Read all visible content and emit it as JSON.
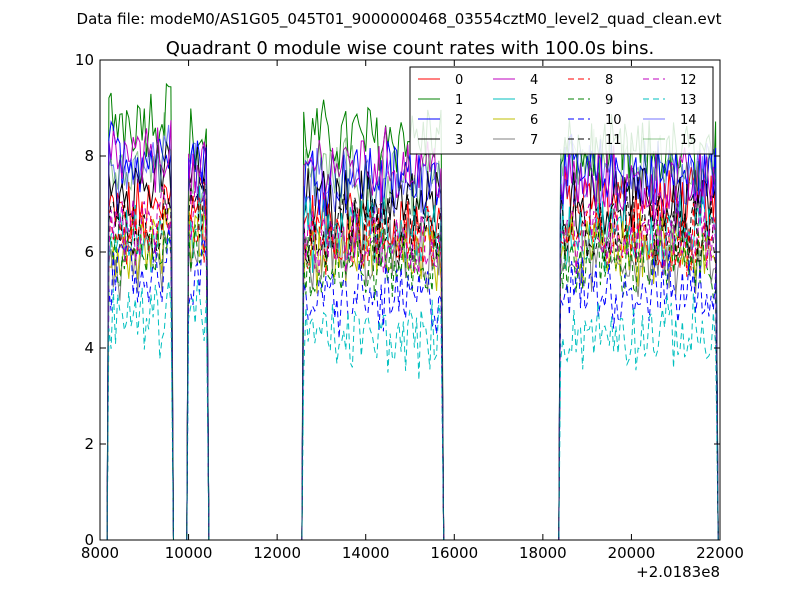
{
  "page": {
    "suptitle": "Data file: modeM0/AS1G05_045T01_9000000468_03554cztM0_level2_quad_clean.evt"
  },
  "chart_data": {
    "type": "line",
    "title": "Quadrant 0 module wise count rates with 100.0s bins.",
    "xlabel": "",
    "ylabel": "",
    "x_offset_label": "+2.0183e8",
    "xlim": [
      8000,
      22000
    ],
    "ylim": [
      0,
      10
    ],
    "x_ticks": [
      8000,
      10000,
      12000,
      14000,
      16000,
      18000,
      20000,
      22000
    ],
    "x_tick_labels": [
      "8000",
      "10000",
      "12000",
      "14000",
      "16000",
      "18000",
      "20000",
      "22000"
    ],
    "y_ticks": [
      0,
      2,
      4,
      6,
      8,
      10
    ],
    "y_tick_labels": [
      "0",
      "2",
      "4",
      "6",
      "8",
      "10"
    ],
    "grid": false,
    "legend_position": "top-right",
    "legend_columns": 4,
    "segments": [
      {
        "start": 8200,
        "end": 9600
      },
      {
        "start": 10000,
        "end": 10400
      },
      {
        "start": 12600,
        "end": 15700
      },
      {
        "start": 18400,
        "end": 21900
      }
    ],
    "series": [
      {
        "name": "0",
        "color": "#ff0000",
        "style": "solid",
        "level": [
          6.8,
          7.2,
          6.6,
          7.0
        ]
      },
      {
        "name": "1",
        "color": "#008000",
        "style": "solid",
        "level": [
          8.8,
          8.3,
          8.4,
          8.0
        ]
      },
      {
        "name": "2",
        "color": "#0000ff",
        "style": "solid",
        "level": [
          8.0,
          8.0,
          7.6,
          7.6
        ]
      },
      {
        "name": "3",
        "color": "#000000",
        "style": "solid",
        "level": [
          7.4,
          7.6,
          7.0,
          7.0
        ]
      },
      {
        "name": "4",
        "color": "#bf00bf",
        "style": "solid",
        "level": [
          7.9,
          7.5,
          7.8,
          7.4
        ]
      },
      {
        "name": "5",
        "color": "#00bfbf",
        "style": "solid",
        "level": [
          6.3,
          6.6,
          6.4,
          6.4
        ]
      },
      {
        "name": "6",
        "color": "#bfbf00",
        "style": "solid",
        "level": [
          6.1,
          6.5,
          6.0,
          6.0
        ]
      },
      {
        "name": "7",
        "color": "#808080",
        "style": "solid",
        "level": [
          5.6,
          6.0,
          5.9,
          5.8
        ]
      },
      {
        "name": "8",
        "color": "#ff0000",
        "style": "dashed",
        "level": [
          6.3,
          6.6,
          6.3,
          6.3
        ]
      },
      {
        "name": "9",
        "color": "#008000",
        "style": "dashed",
        "level": [
          6.0,
          6.2,
          5.7,
          5.8
        ]
      },
      {
        "name": "10",
        "color": "#0000ff",
        "style": "dashed",
        "level": [
          5.5,
          5.6,
          5.0,
          5.2
        ]
      },
      {
        "name": "11",
        "color": "#000000",
        "style": "dashed",
        "level": [
          6.6,
          6.9,
          6.5,
          6.5
        ]
      },
      {
        "name": "12",
        "color": "#bf00bf",
        "style": "dashed",
        "level": [
          6.5,
          6.8,
          6.2,
          6.4
        ]
      },
      {
        "name": "13",
        "color": "#00bfbf",
        "style": "dashed",
        "level": [
          4.6,
          4.8,
          4.2,
          4.3
        ]
      },
      {
        "name": "14",
        "color": "#0000ff",
        "style": "solid",
        "level": [
          7.7,
          7.6,
          7.4,
          7.6
        ],
        "opacity": 0.55
      },
      {
        "name": "15",
        "color": "#008000",
        "style": "solid",
        "level": [
          7.8,
          7.5,
          7.6,
          7.8
        ],
        "opacity": 0.45
      }
    ]
  }
}
